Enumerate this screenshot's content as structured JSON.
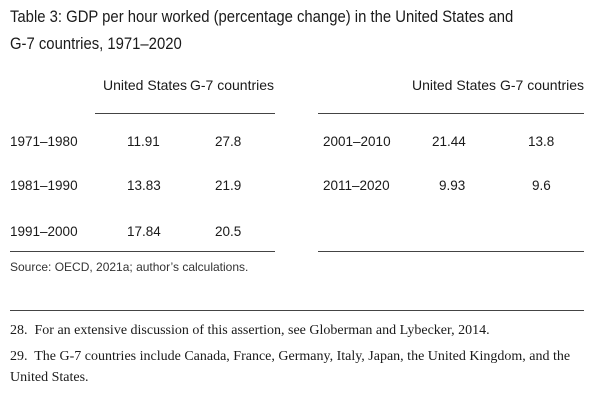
{
  "table": {
    "title": "Table 3: GDP per hour worked (percentage change) in the United States and G-7 countries, 1971–2020",
    "headers": {
      "us": "United States",
      "g7": "G-7 countries"
    },
    "left_rows": [
      {
        "period": "1971–1980",
        "us": "11.91",
        "g7": "27.8"
      },
      {
        "period": "1981–1990",
        "us": "13.83",
        "g7": "21.9"
      },
      {
        "period": "1991–2000",
        "us": "17.84",
        "g7": "20.5"
      }
    ],
    "right_rows": [
      {
        "period": "2001–2010",
        "us": "21.44",
        "g7": "13.8"
      },
      {
        "period": "2011–2020",
        "us": "9.93",
        "g7": "9.6"
      }
    ],
    "source": "Source: OECD, 2021a; author’s calculations."
  },
  "footnotes": [
    {
      "number": "28.",
      "text": "For an extensive discussion of this assertion, see Globerman and Lybecker, 2014."
    },
    {
      "number": "29.",
      "text": "The G-7 countries include Canada, France, Germany, Italy, Japan, the United Kingdom, and the United States."
    }
  ]
}
